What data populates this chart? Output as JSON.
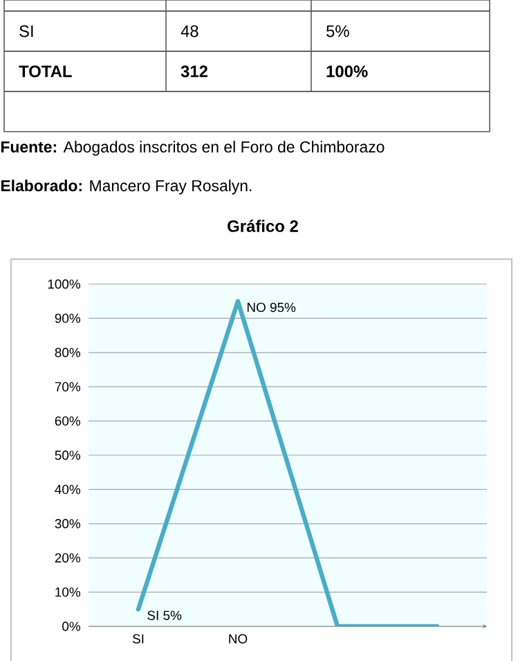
{
  "chart_data": {
    "type": "line",
    "title": "Gráfico 2",
    "categories": [
      "SI",
      "NO",
      null,
      null
    ],
    "series": [
      {
        "color": "#4bacc6",
        "values": [
          5,
          95,
          0,
          0
        ],
        "value_labels": [
          "SI 5%",
          "NO 95%",
          null,
          null
        ]
      }
    ],
    "ylim": [
      0,
      100
    ],
    "yticks": [
      {
        "value": 0,
        "label": "0%"
      },
      {
        "value": 10,
        "label": "10%"
      },
      {
        "value": 20,
        "label": "20%"
      },
      {
        "value": 30,
        "label": "30%"
      },
      {
        "value": 40,
        "label": "40%"
      },
      {
        "value": 50,
        "label": "50%"
      },
      {
        "value": 60,
        "label": "60%"
      },
      {
        "value": 70,
        "label": "70%"
      },
      {
        "value": 80,
        "label": "80%"
      },
      {
        "value": 90,
        "label": "90%"
      },
      {
        "value": 100,
        "label": "100%"
      }
    ],
    "grid": "y",
    "annotations": [
      "SI",
      "48",
      "5%",
      "TOTAL",
      "312",
      "100%",
      "**Fuente:** Abogados inscritos en el Foro de Chimborazo",
      "**Elaborado:** Mancero Fray Rosalyn."
    ]
  }
}
